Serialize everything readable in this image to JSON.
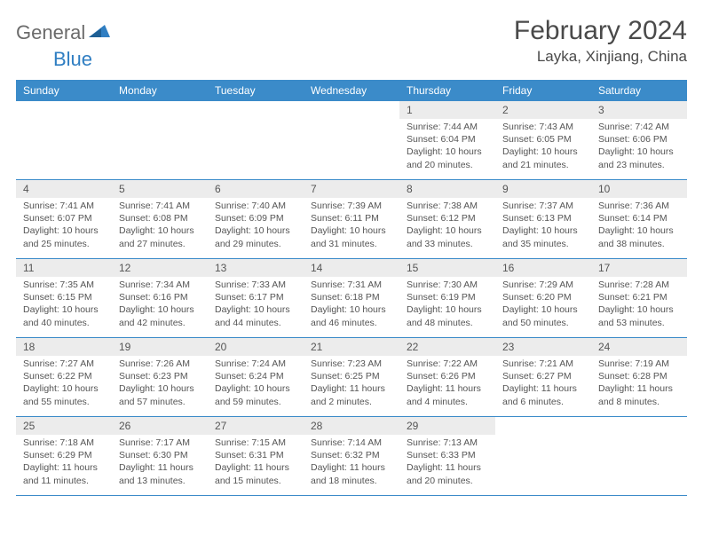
{
  "logo": {
    "general": "General",
    "blue": "Blue"
  },
  "title": "February 2024",
  "location": "Layka, Xinjiang, China",
  "colors": {
    "header_bg": "#3b8bc9",
    "header_text": "#ffffff",
    "daynum_bg": "#ececec",
    "text": "#555555",
    "border": "#3b8bc9",
    "logo_general": "#6b6b6b",
    "logo_blue": "#2f7ec2"
  },
  "day_names": [
    "Sunday",
    "Monday",
    "Tuesday",
    "Wednesday",
    "Thursday",
    "Friday",
    "Saturday"
  ],
  "weeks": [
    [
      {
        "num": "",
        "sunrise": "",
        "sunset": "",
        "daylight1": "",
        "daylight2": ""
      },
      {
        "num": "",
        "sunrise": "",
        "sunset": "",
        "daylight1": "",
        "daylight2": ""
      },
      {
        "num": "",
        "sunrise": "",
        "sunset": "",
        "daylight1": "",
        "daylight2": ""
      },
      {
        "num": "",
        "sunrise": "",
        "sunset": "",
        "daylight1": "",
        "daylight2": ""
      },
      {
        "num": "1",
        "sunrise": "Sunrise: 7:44 AM",
        "sunset": "Sunset: 6:04 PM",
        "daylight1": "Daylight: 10 hours",
        "daylight2": "and 20 minutes."
      },
      {
        "num": "2",
        "sunrise": "Sunrise: 7:43 AM",
        "sunset": "Sunset: 6:05 PM",
        "daylight1": "Daylight: 10 hours",
        "daylight2": "and 21 minutes."
      },
      {
        "num": "3",
        "sunrise": "Sunrise: 7:42 AM",
        "sunset": "Sunset: 6:06 PM",
        "daylight1": "Daylight: 10 hours",
        "daylight2": "and 23 minutes."
      }
    ],
    [
      {
        "num": "4",
        "sunrise": "Sunrise: 7:41 AM",
        "sunset": "Sunset: 6:07 PM",
        "daylight1": "Daylight: 10 hours",
        "daylight2": "and 25 minutes."
      },
      {
        "num": "5",
        "sunrise": "Sunrise: 7:41 AM",
        "sunset": "Sunset: 6:08 PM",
        "daylight1": "Daylight: 10 hours",
        "daylight2": "and 27 minutes."
      },
      {
        "num": "6",
        "sunrise": "Sunrise: 7:40 AM",
        "sunset": "Sunset: 6:09 PM",
        "daylight1": "Daylight: 10 hours",
        "daylight2": "and 29 minutes."
      },
      {
        "num": "7",
        "sunrise": "Sunrise: 7:39 AM",
        "sunset": "Sunset: 6:11 PM",
        "daylight1": "Daylight: 10 hours",
        "daylight2": "and 31 minutes."
      },
      {
        "num": "8",
        "sunrise": "Sunrise: 7:38 AM",
        "sunset": "Sunset: 6:12 PM",
        "daylight1": "Daylight: 10 hours",
        "daylight2": "and 33 minutes."
      },
      {
        "num": "9",
        "sunrise": "Sunrise: 7:37 AM",
        "sunset": "Sunset: 6:13 PM",
        "daylight1": "Daylight: 10 hours",
        "daylight2": "and 35 minutes."
      },
      {
        "num": "10",
        "sunrise": "Sunrise: 7:36 AM",
        "sunset": "Sunset: 6:14 PM",
        "daylight1": "Daylight: 10 hours",
        "daylight2": "and 38 minutes."
      }
    ],
    [
      {
        "num": "11",
        "sunrise": "Sunrise: 7:35 AM",
        "sunset": "Sunset: 6:15 PM",
        "daylight1": "Daylight: 10 hours",
        "daylight2": "and 40 minutes."
      },
      {
        "num": "12",
        "sunrise": "Sunrise: 7:34 AM",
        "sunset": "Sunset: 6:16 PM",
        "daylight1": "Daylight: 10 hours",
        "daylight2": "and 42 minutes."
      },
      {
        "num": "13",
        "sunrise": "Sunrise: 7:33 AM",
        "sunset": "Sunset: 6:17 PM",
        "daylight1": "Daylight: 10 hours",
        "daylight2": "and 44 minutes."
      },
      {
        "num": "14",
        "sunrise": "Sunrise: 7:31 AM",
        "sunset": "Sunset: 6:18 PM",
        "daylight1": "Daylight: 10 hours",
        "daylight2": "and 46 minutes."
      },
      {
        "num": "15",
        "sunrise": "Sunrise: 7:30 AM",
        "sunset": "Sunset: 6:19 PM",
        "daylight1": "Daylight: 10 hours",
        "daylight2": "and 48 minutes."
      },
      {
        "num": "16",
        "sunrise": "Sunrise: 7:29 AM",
        "sunset": "Sunset: 6:20 PM",
        "daylight1": "Daylight: 10 hours",
        "daylight2": "and 50 minutes."
      },
      {
        "num": "17",
        "sunrise": "Sunrise: 7:28 AM",
        "sunset": "Sunset: 6:21 PM",
        "daylight1": "Daylight: 10 hours",
        "daylight2": "and 53 minutes."
      }
    ],
    [
      {
        "num": "18",
        "sunrise": "Sunrise: 7:27 AM",
        "sunset": "Sunset: 6:22 PM",
        "daylight1": "Daylight: 10 hours",
        "daylight2": "and 55 minutes."
      },
      {
        "num": "19",
        "sunrise": "Sunrise: 7:26 AM",
        "sunset": "Sunset: 6:23 PM",
        "daylight1": "Daylight: 10 hours",
        "daylight2": "and 57 minutes."
      },
      {
        "num": "20",
        "sunrise": "Sunrise: 7:24 AM",
        "sunset": "Sunset: 6:24 PM",
        "daylight1": "Daylight: 10 hours",
        "daylight2": "and 59 minutes."
      },
      {
        "num": "21",
        "sunrise": "Sunrise: 7:23 AM",
        "sunset": "Sunset: 6:25 PM",
        "daylight1": "Daylight: 11 hours",
        "daylight2": "and 2 minutes."
      },
      {
        "num": "22",
        "sunrise": "Sunrise: 7:22 AM",
        "sunset": "Sunset: 6:26 PM",
        "daylight1": "Daylight: 11 hours",
        "daylight2": "and 4 minutes."
      },
      {
        "num": "23",
        "sunrise": "Sunrise: 7:21 AM",
        "sunset": "Sunset: 6:27 PM",
        "daylight1": "Daylight: 11 hours",
        "daylight2": "and 6 minutes."
      },
      {
        "num": "24",
        "sunrise": "Sunrise: 7:19 AM",
        "sunset": "Sunset: 6:28 PM",
        "daylight1": "Daylight: 11 hours",
        "daylight2": "and 8 minutes."
      }
    ],
    [
      {
        "num": "25",
        "sunrise": "Sunrise: 7:18 AM",
        "sunset": "Sunset: 6:29 PM",
        "daylight1": "Daylight: 11 hours",
        "daylight2": "and 11 minutes."
      },
      {
        "num": "26",
        "sunrise": "Sunrise: 7:17 AM",
        "sunset": "Sunset: 6:30 PM",
        "daylight1": "Daylight: 11 hours",
        "daylight2": "and 13 minutes."
      },
      {
        "num": "27",
        "sunrise": "Sunrise: 7:15 AM",
        "sunset": "Sunset: 6:31 PM",
        "daylight1": "Daylight: 11 hours",
        "daylight2": "and 15 minutes."
      },
      {
        "num": "28",
        "sunrise": "Sunrise: 7:14 AM",
        "sunset": "Sunset: 6:32 PM",
        "daylight1": "Daylight: 11 hours",
        "daylight2": "and 18 minutes."
      },
      {
        "num": "29",
        "sunrise": "Sunrise: 7:13 AM",
        "sunset": "Sunset: 6:33 PM",
        "daylight1": "Daylight: 11 hours",
        "daylight2": "and 20 minutes."
      },
      {
        "num": "",
        "sunrise": "",
        "sunset": "",
        "daylight1": "",
        "daylight2": ""
      },
      {
        "num": "",
        "sunrise": "",
        "sunset": "",
        "daylight1": "",
        "daylight2": ""
      }
    ]
  ]
}
